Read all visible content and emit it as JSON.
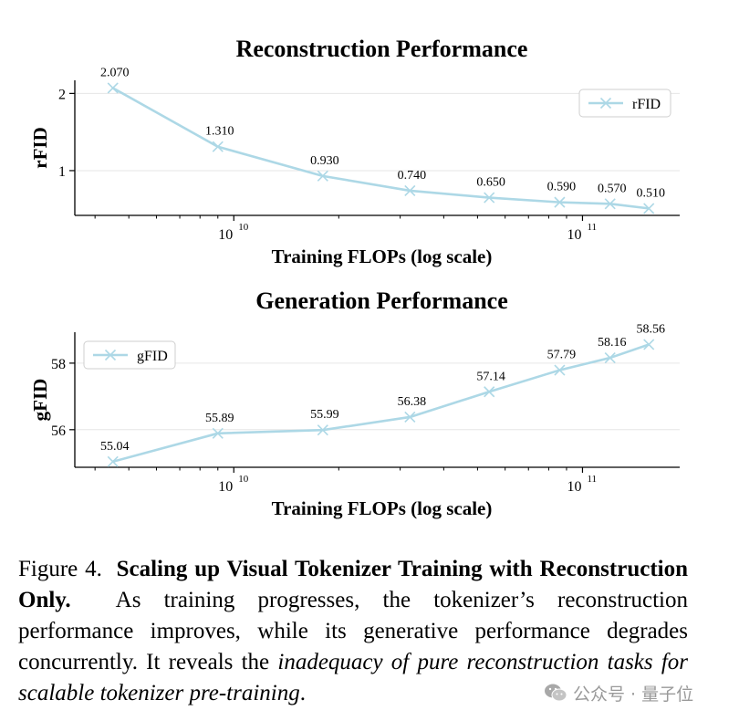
{
  "chart_data": [
    {
      "type": "line",
      "title": "Reconstruction Performance",
      "xlabel": "Training FLOPs (log scale)",
      "ylabel": "rFID",
      "xscale": "log",
      "x": [
        4500000000.0,
        9000000000.0,
        18000000000.0,
        32000000000.0,
        54000000000.0,
        86000000000.0,
        120000000000.0,
        155000000000.0
      ],
      "xlim": [
        3500000000.0,
        190000000000.0
      ],
      "ylim": [
        0.42,
        2.17
      ],
      "xticks": [
        {
          "value": 10000000000.0,
          "mantissa": "10",
          "exponent": "10"
        },
        {
          "value": 100000000000.0,
          "mantissa": "10",
          "exponent": "11"
        }
      ],
      "yticks": [
        {
          "value": 1,
          "label": "1"
        },
        {
          "value": 2,
          "label": "2"
        }
      ],
      "series": [
        {
          "name": "rFID",
          "values": [
            2.07,
            1.31,
            0.93,
            0.74,
            0.65,
            0.59,
            0.57,
            0.51
          ],
          "labels": [
            "2.070",
            "1.310",
            "0.930",
            "0.740",
            "0.650",
            "0.590",
            "0.570",
            "0.510"
          ]
        }
      ],
      "color": "#add8e6",
      "legend": "top-right",
      "grid": "horizontal"
    },
    {
      "type": "line",
      "title": "Generation Performance",
      "xlabel": "Training FLOPs (log scale)",
      "ylabel": "gFID",
      "xscale": "log",
      "x": [
        4500000000.0,
        9000000000.0,
        18000000000.0,
        32000000000.0,
        54000000000.0,
        86000000000.0,
        120000000000.0,
        155000000000.0
      ],
      "xlim": [
        3500000000.0,
        190000000000.0
      ],
      "ylim": [
        54.87,
        58.93
      ],
      "xticks": [
        {
          "value": 10000000000.0,
          "mantissa": "10",
          "exponent": "10"
        },
        {
          "value": 100000000000.0,
          "mantissa": "10",
          "exponent": "11"
        }
      ],
      "yticks": [
        {
          "value": 56,
          "label": "56"
        },
        {
          "value": 58,
          "label": "58"
        }
      ],
      "series": [
        {
          "name": "gFID",
          "values": [
            55.04,
            55.89,
            55.99,
            56.38,
            57.14,
            57.79,
            58.16,
            58.56
          ],
          "labels": [
            "55.04",
            "55.89",
            "55.99",
            "56.38",
            "57.14",
            "57.79",
            "58.16",
            "58.56"
          ]
        }
      ],
      "color": "#add8e6",
      "legend": "top-left",
      "grid": "horizontal"
    }
  ],
  "caption": {
    "prefix": "Figure 4.",
    "bold": "Scaling up Visual Tokenizer Training with Reconstruction Only.",
    "body": "As training progresses, the tokenizer’s reconstruction performance improves, while its generative performance degrades concurrently. It reveals the",
    "italic": "inadequacy of pure reconstruction tasks for scalable tokenizer pre-training",
    "end": "."
  },
  "watermark": {
    "text": "公众号 · 量子位",
    "icon": "wechat-icon"
  }
}
